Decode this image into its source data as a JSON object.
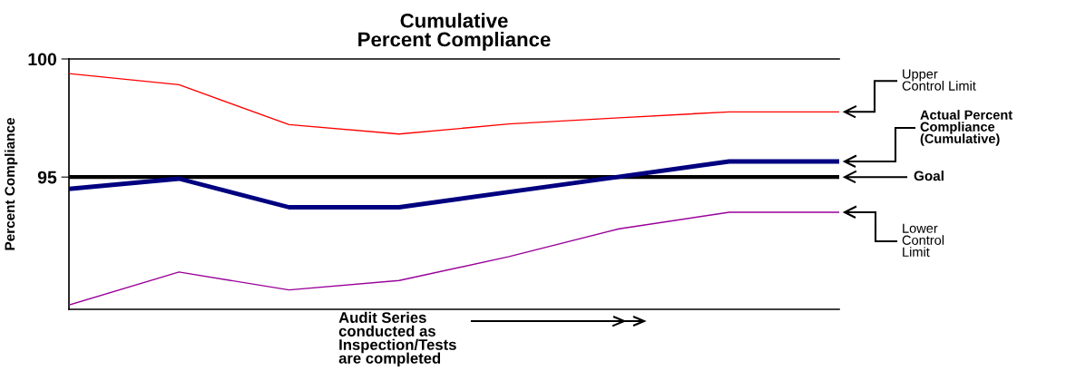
{
  "chart_data": {
    "type": "line",
    "title": "Cumulative\nPercent Compliance",
    "ylabel": "Percent Compliance",
    "xlabel": "Audit Series\nconducted as\nInspection/Tests\nare completed",
    "categories": [
      null,
      null,
      null,
      null,
      null,
      null,
      null,
      null
    ],
    "series": [
      {
        "color": "#ff0000",
        "values": [
          99.38,
          98.91,
          97.22,
          96.82,
          97.25,
          97.51,
          97.76,
          97.76
        ]
      },
      {
        "color": "#000080",
        "values": [
          94.5,
          94.93,
          93.72,
          93.72,
          94.37,
          95.01,
          95.66,
          95.66
        ]
      },
      {
        "color": "#990099",
        "values": [
          89.58,
          90.98,
          90.22,
          90.62,
          91.63,
          92.81,
          93.51,
          93.51
        ]
      }
    ],
    "ylim": [
      89.4,
      100
    ],
    "yticks": [
      95,
      100
    ],
    "ref_lines": [
      {
        "axis": "y",
        "value": 95,
        "label": "Goal",
        "color": "#000000"
      }
    ],
    "annotations": [
      "Upper\nControl Limit",
      "Actual Percent\nCompliance\n(Cumulative)",
      "Lower\nControl\nLimit"
    ],
    "grid": false,
    "legend": false,
    "marker": "none",
    "line_style": "solid",
    "tick_labels": "y"
  }
}
